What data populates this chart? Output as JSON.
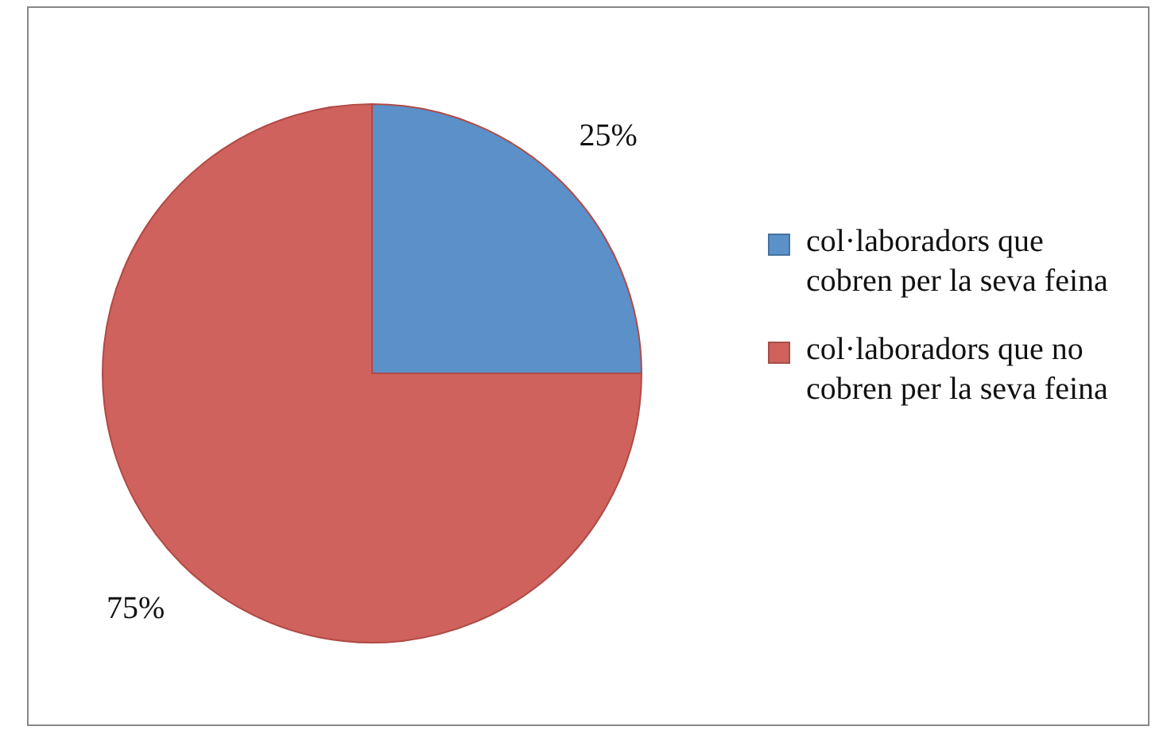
{
  "chart_data": {
    "type": "pie",
    "categories": [
      "col·laboradors que cobren per la seva feina",
      "col·laboradors que no cobren per la seva feina"
    ],
    "values": [
      25,
      75
    ],
    "colors": [
      "#5b90c9",
      "#cf625c"
    ],
    "value_labels": [
      "25%",
      "75%"
    ],
    "legend": "right"
  }
}
